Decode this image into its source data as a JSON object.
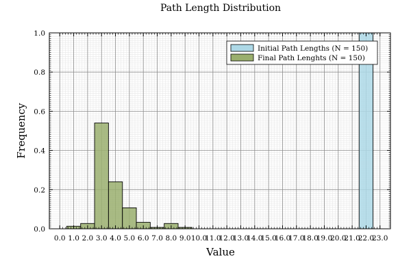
{
  "chart_data": {
    "type": "bar",
    "title": "Path Length Distribution",
    "xlabel": "Value",
    "ylabel": "Frequency",
    "xlim": [
      -0.75,
      23.75
    ],
    "ylim": [
      0,
      1.0
    ],
    "x_ticks": [
      0,
      1,
      2,
      3,
      4,
      5,
      6,
      7,
      8,
      9,
      10,
      11,
      12,
      13,
      14,
      15,
      16,
      17,
      18,
      19,
      20,
      21,
      22,
      23
    ],
    "x_tick_labels": [
      "0.0",
      "1.0",
      "2.0",
      "3.0",
      "4.0",
      "5.0",
      "6.0",
      "7.0",
      "8.0",
      "9.0",
      "10.0",
      "11.0",
      "12.0",
      "13.0",
      "14.0",
      "15.0",
      "16.0",
      "17.0",
      "18.0",
      "19.0",
      "20.0",
      "21.0",
      "22.0",
      "23.0"
    ],
    "y_ticks": [
      0.0,
      0.2,
      0.4,
      0.6,
      0.8,
      1.0
    ],
    "y_tick_labels": [
      "0.0",
      "0.2",
      "0.4",
      "0.6",
      "0.8",
      "1.0"
    ],
    "grid": true,
    "legend_position": "top-right",
    "series": [
      {
        "name": "Initial Path Lengths (N = 150)",
        "color": "#add8e6",
        "bins": [
          {
            "start": 21.5,
            "end": 22.5,
            "value": 1.0
          }
        ]
      },
      {
        "name": "Final Path Lenghts (N = 150)",
        "color": "#9aaf6e",
        "bins": [
          {
            "start": 0.5,
            "end": 1.5,
            "value": 0.013
          },
          {
            "start": 1.5,
            "end": 2.5,
            "value": 0.027
          },
          {
            "start": 2.5,
            "end": 3.5,
            "value": 0.54
          },
          {
            "start": 3.5,
            "end": 4.5,
            "value": 0.24
          },
          {
            "start": 4.5,
            "end": 5.5,
            "value": 0.107
          },
          {
            "start": 5.5,
            "end": 6.5,
            "value": 0.033
          },
          {
            "start": 6.5,
            "end": 7.5,
            "value": 0.007
          },
          {
            "start": 7.5,
            "end": 8.5,
            "value": 0.027
          },
          {
            "start": 8.5,
            "end": 9.5,
            "value": 0.007
          }
        ]
      }
    ]
  }
}
